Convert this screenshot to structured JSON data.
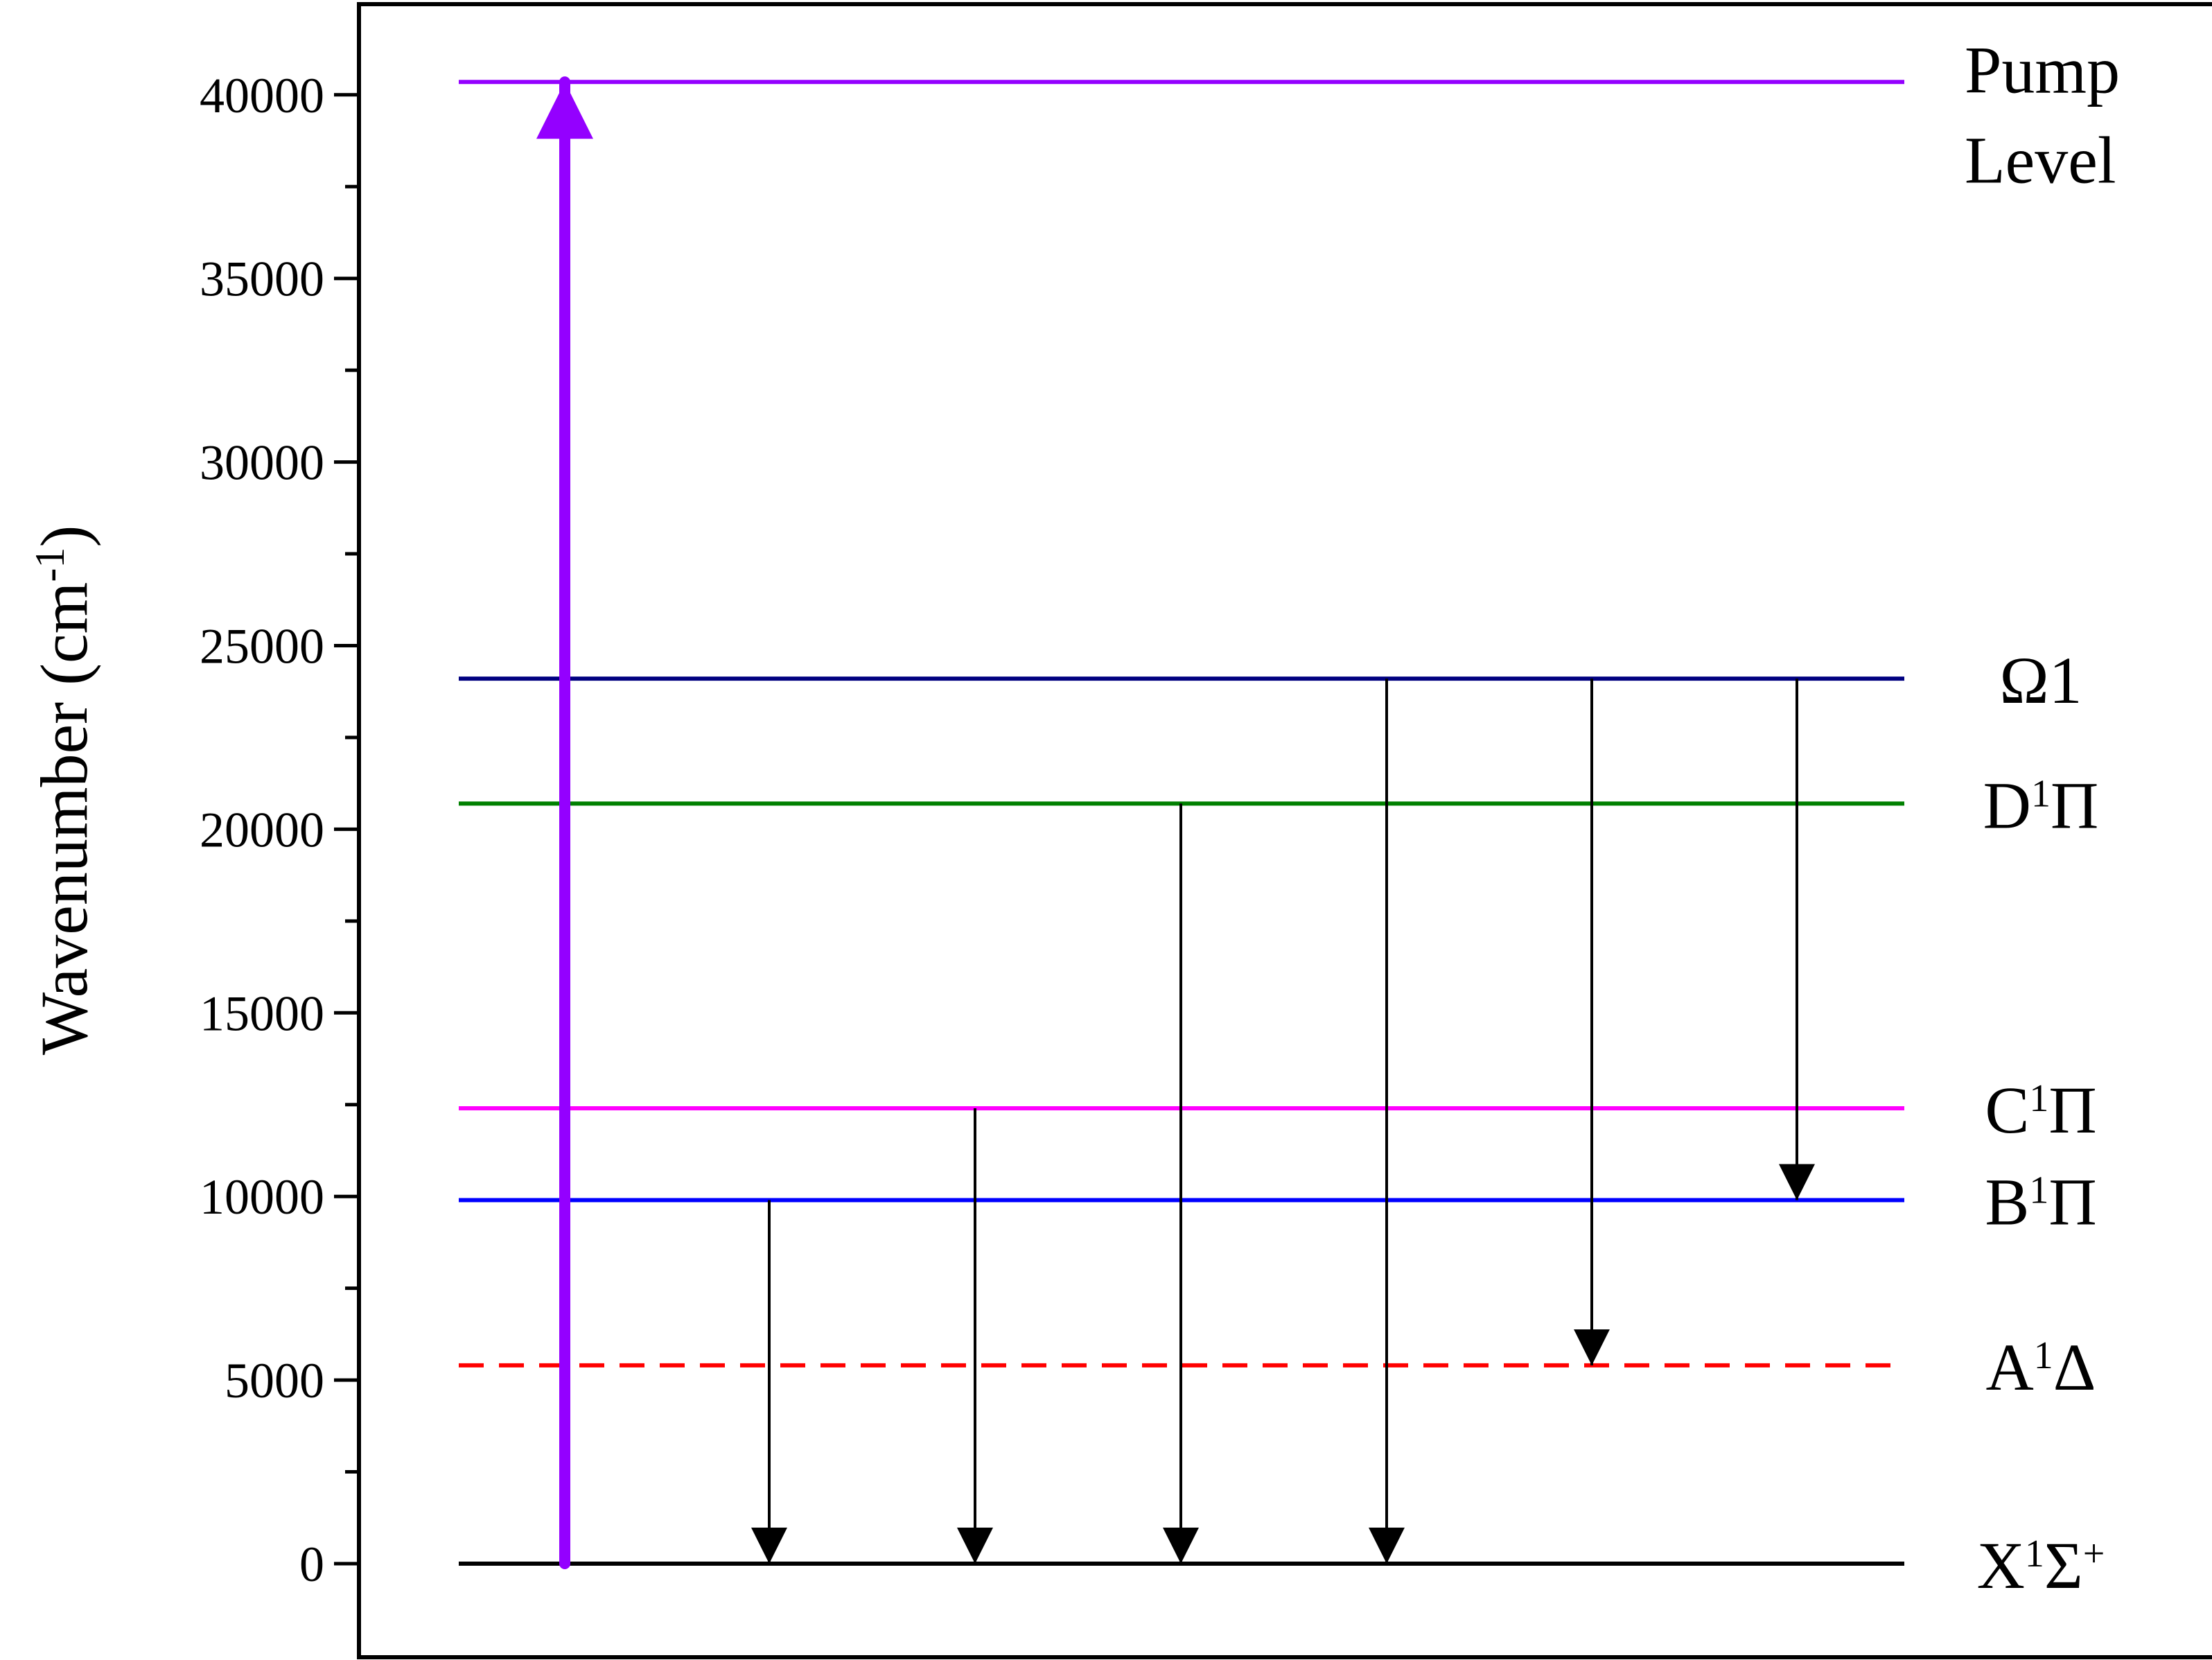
{
  "chart_data": {
    "type": "energy-level-diagram",
    "title": "",
    "xlabel": "",
    "ylabel": {
      "main": "Wavenumber (cm",
      "sup": "-1",
      "close": ")"
    },
    "ylim": [
      -2500,
      42000
    ],
    "yticks_major": [
      "0",
      "5000",
      "10000",
      "15000",
      "20000",
      "25000",
      "30000",
      "35000",
      "40000"
    ],
    "ytick_minor_step": 2500,
    "grid": false,
    "levels": [
      {
        "name": "Pump Level",
        "label_lines": [
          "Pump",
          "Level"
        ],
        "y": 40350,
        "color": "#9400ff",
        "dashed": false
      },
      {
        "name": "Ω1",
        "label": "Ω1",
        "y": 24100,
        "color": "#000080",
        "dashed": false
      },
      {
        "name": "D1Π",
        "label_main": "D",
        "label_sup": "1",
        "label_tail": "Π",
        "y": 20700,
        "color": "#008000",
        "dashed": false
      },
      {
        "name": "C1Π",
        "label_main": "C",
        "label_sup": "1",
        "label_tail": "Π",
        "y": 12400,
        "color": "#ff00ff",
        "dashed": false
      },
      {
        "name": "B1Π",
        "label_main": "B",
        "label_sup": "1",
        "label_tail": "Π",
        "y": 9900,
        "color": "#0000ff",
        "dashed": false
      },
      {
        "name": "A1Δ",
        "label_main": "A",
        "label_sup": "1",
        "label_tail": "Δ",
        "y": 5400,
        "color": "#ff0000",
        "dashed": true
      },
      {
        "name": "X1Σ+",
        "label_main": "X",
        "label_sup": "1",
        "label_tail": "Σ",
        "label_sup2": "+",
        "y": 0,
        "color": "#000000",
        "dashed": false
      }
    ],
    "transitions": [
      {
        "slot": 1,
        "from": 0,
        "to": 40350,
        "kind": "pump",
        "color": "#9400ff"
      },
      {
        "slot": 2,
        "from": 9900,
        "to": 0,
        "kind": "emission",
        "color": "#000000"
      },
      {
        "slot": 3,
        "from": 12400,
        "to": 0,
        "kind": "emission",
        "color": "#000000"
      },
      {
        "slot": 4,
        "from": 20700,
        "to": 0,
        "kind": "emission",
        "color": "#000000"
      },
      {
        "slot": 5,
        "from": 24100,
        "to": 0,
        "kind": "emission",
        "color": "#000000"
      },
      {
        "slot": 6,
        "from": 24100,
        "to": 5400,
        "kind": "emission",
        "color": "#000000"
      },
      {
        "slot": 7,
        "from": 24100,
        "to": 9900,
        "kind": "emission",
        "color": "#000000"
      }
    ]
  }
}
